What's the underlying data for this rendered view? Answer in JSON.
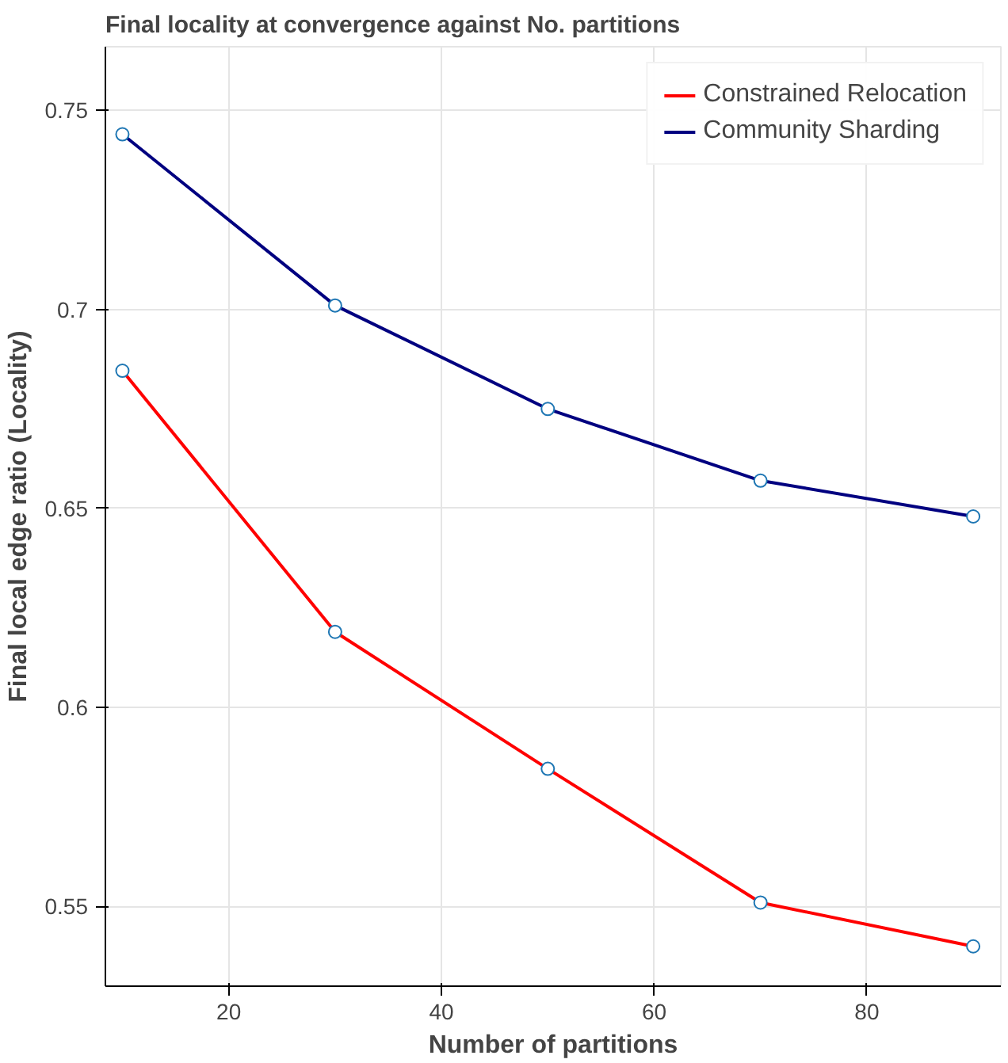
{
  "chart_data": {
    "type": "line",
    "title": "Final locality at convergence against No. partitions",
    "xlabel": "Number of partitions",
    "ylabel": "Final local edge ratio (Locality)",
    "x": [
      10,
      30,
      50,
      70,
      90
    ],
    "series": [
      {
        "name": "Constrained Relocation",
        "color": "#ff0000",
        "values": [
          0.6846,
          0.619,
          0.5846,
          0.551,
          0.54
        ]
      },
      {
        "name": "Community Sharding",
        "color": "#000080",
        "values": [
          0.744,
          0.701,
          0.675,
          0.657,
          0.648
        ]
      }
    ],
    "xlim": [
      8.4,
      92.6
    ],
    "xticks": [
      20,
      40,
      60,
      80
    ],
    "ylim": [
      0.53,
      0.766
    ],
    "yticks": [
      0.55,
      0.6,
      0.65,
      0.7,
      0.75
    ],
    "grid": true,
    "legend": "top right",
    "marker": "circle",
    "line_style": "solid"
  }
}
